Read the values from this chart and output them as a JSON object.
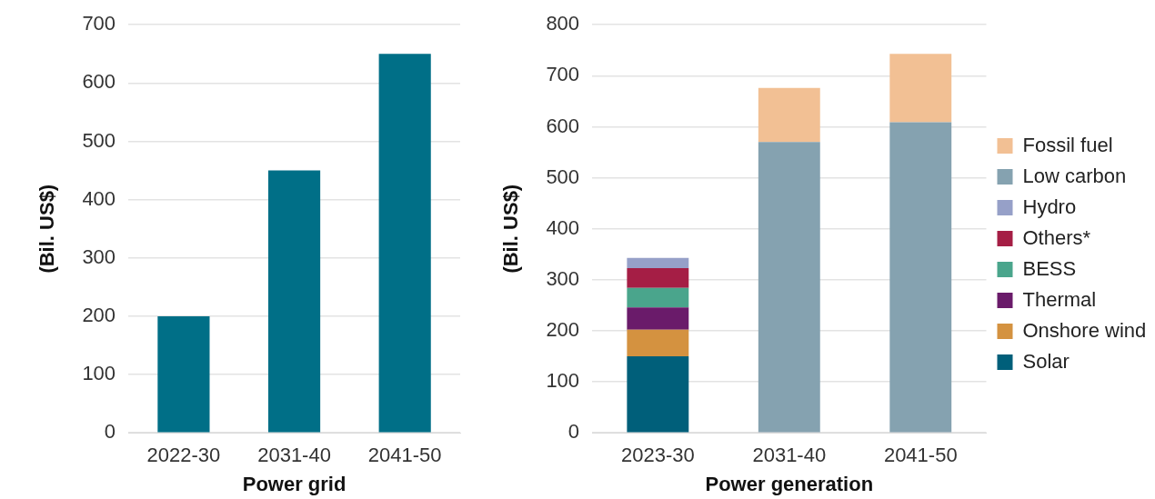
{
  "chart_data": [
    {
      "type": "bar",
      "xlabel": "Power grid",
      "ylabel": "(Bil. US$)",
      "categories": [
        "2022-30",
        "2031-40",
        "2041-50"
      ],
      "values": [
        200,
        450,
        650
      ],
      "color": "#006f87",
      "ylim": [
        0,
        700
      ],
      "yticks": [
        0,
        100,
        200,
        300,
        400,
        500,
        600,
        700
      ],
      "grid": "y",
      "legend": false
    },
    {
      "type": "bar",
      "xlabel": "Power generation",
      "ylabel": "(Bil. US$)",
      "categories": [
        "2023-30",
        "2031-40",
        "2041-50"
      ],
      "stacked": true,
      "ylim": [
        0,
        800
      ],
      "yticks": [
        0,
        100,
        200,
        300,
        400,
        500,
        600,
        700,
        800
      ],
      "grid": "y",
      "legend": "right",
      "series": [
        {
          "name": "Solar",
          "color": "#005f7a",
          "values": [
            150,
            null,
            null
          ]
        },
        {
          "name": "Onshore wind",
          "color": "#d49240",
          "values": [
            52,
            null,
            null
          ]
        },
        {
          "name": "Thermal",
          "color": "#6a1b6a",
          "values": [
            44,
            null,
            null
          ]
        },
        {
          "name": "BESS",
          "color": "#4aa58c",
          "values": [
            38,
            null,
            null
          ]
        },
        {
          "name": "Others*",
          "color": "#a51e45",
          "values": [
            39,
            null,
            null
          ]
        },
        {
          "name": "Hydro",
          "color": "#96a0c8",
          "values": [
            20,
            null,
            null
          ]
        },
        {
          "name": "Low carbon",
          "color": "#85a2b0",
          "values": [
            null,
            570,
            609
          ]
        },
        {
          "name": "Fossil fuel",
          "color": "#f2c094",
          "values": [
            null,
            106,
            134
          ]
        }
      ]
    }
  ]
}
